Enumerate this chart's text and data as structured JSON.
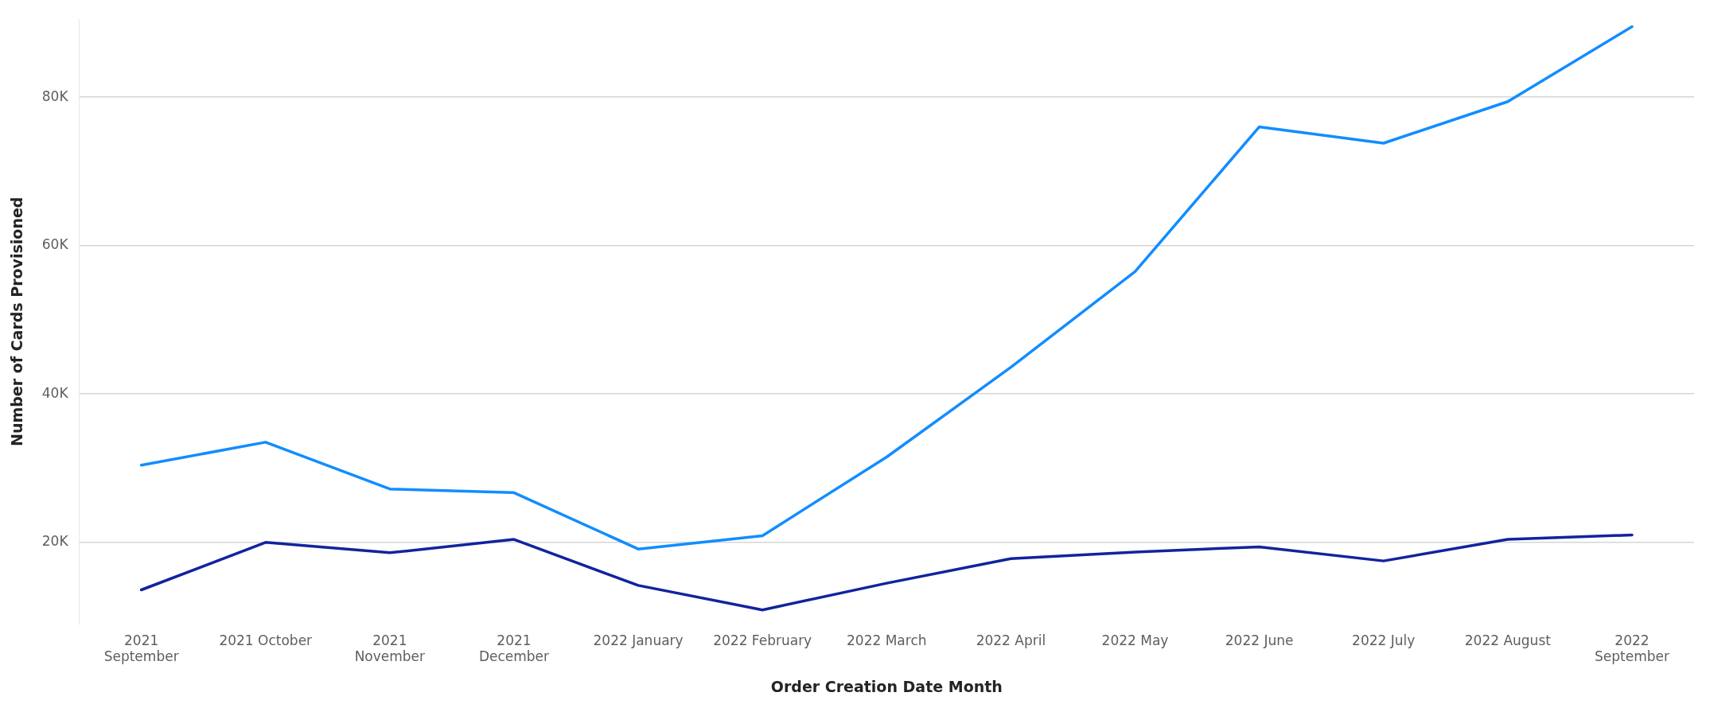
{
  "chart_data": {
    "type": "line",
    "xlabel": "Order Creation Date Month",
    "ylabel": "Number of Cards Provisioned",
    "categories": [
      "2021\nSeptember",
      "2021 October",
      "2021\nNovember",
      "2021\nDecember",
      "2022 January",
      "2022 February",
      "2022 March",
      "2022 April",
      "2022 May",
      "2022 June",
      "2022 July",
      "2022 August",
      "2022\nSeptember"
    ],
    "series": [
      {
        "color": "#118dff",
        "values": [
          30400,
          33500,
          27200,
          26700,
          19100,
          20900,
          31500,
          43600,
          56500,
          76000,
          73800,
          79400,
          89500
        ]
      },
      {
        "color": "#12239e",
        "values": [
          13600,
          20000,
          18600,
          20400,
          14200,
          10900,
          14500,
          17800,
          18700,
          19400,
          17500,
          20400,
          21000
        ]
      }
    ],
    "ylim": [
      9000,
      90500
    ],
    "yticks": [
      {
        "value": 20000,
        "label": "20K"
      },
      {
        "value": 40000,
        "label": "40K"
      },
      {
        "value": 60000,
        "label": "60K"
      },
      {
        "value": 80000,
        "label": "80K"
      }
    ],
    "grid": "y",
    "legend": false
  }
}
